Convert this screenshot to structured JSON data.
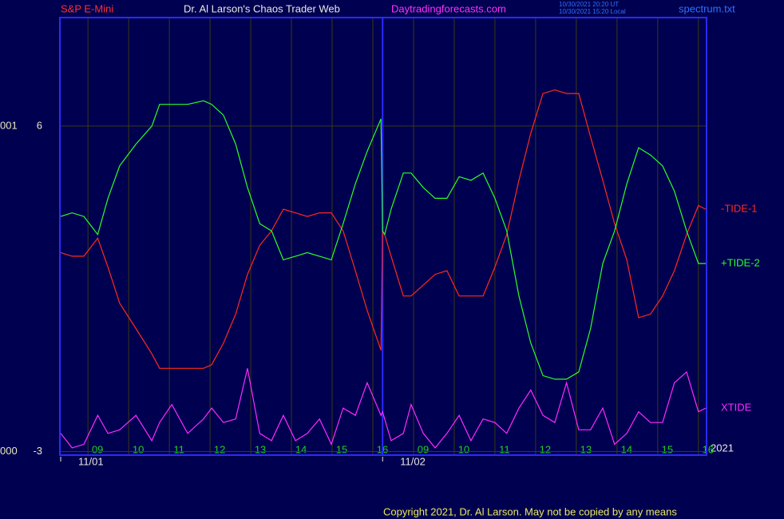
{
  "chart_data": {
    "type": "line",
    "header": {
      "instrument": "S&P E-Mini",
      "title": "Dr. Al Larson's Chaos Trader Web",
      "site": "Daytradingforecasts.com",
      "time_ut": "10/30/2021 20:20 UT",
      "time_local": "10/30/2021 15:20 Local",
      "file": "spectrum.txt"
    },
    "footer": "Copyright 2021, Dr. Al Larson. May not be copied by any means",
    "year_label": "2021",
    "xlim": [
      -0.69,
      15.2
    ],
    "ylim": [
      -3.1,
      9
    ],
    "yticks": [
      6,
      -3
    ],
    "left_labels": [
      "001",
      "000"
    ],
    "xticks": [
      {
        "value": 0,
        "label": "09"
      },
      {
        "value": 1,
        "label": "10"
      },
      {
        "value": 2,
        "label": "11"
      },
      {
        "value": 3,
        "label": "12"
      },
      {
        "value": 4,
        "label": "13"
      },
      {
        "value": 5,
        "label": "14"
      },
      {
        "value": 6,
        "label": "15"
      },
      {
        "value": 7,
        "label": "16"
      },
      {
        "value": 8,
        "label": "09"
      },
      {
        "value": 9,
        "label": "10"
      },
      {
        "value": 10,
        "label": "11"
      },
      {
        "value": 11,
        "label": "12"
      },
      {
        "value": 12,
        "label": "13"
      },
      {
        "value": 13,
        "label": "14"
      },
      {
        "value": 14,
        "label": "15"
      },
      {
        "value": 15,
        "label": "16"
      }
    ],
    "date_ticks": [
      {
        "value": -0.67,
        "label": "11/01"
      },
      {
        "value": 7.24,
        "label": "11/02"
      }
    ],
    "grid": true,
    "x": [
      -0.67,
      -0.39,
      -0.1,
      0.24,
      0.49,
      0.78,
      1.18,
      1.57,
      1.76,
      2.06,
      2.45,
      2.84,
      3.04,
      3.33,
      3.63,
      3.92,
      4.22,
      4.51,
      4.8,
      5.1,
      5.39,
      5.69,
      5.98,
      6.27,
      6.57,
      6.86,
      7.2,
      7.24,
      7.29,
      7.45,
      7.75,
      7.94,
      8.24,
      8.53,
      8.82,
      9.12,
      9.41,
      9.71,
      10.0,
      10.29,
      10.59,
      10.88,
      11.18,
      11.47,
      11.76,
      12.06,
      12.35,
      12.65,
      12.94,
      13.24,
      13.53,
      13.82,
      14.12,
      14.41,
      14.71,
      15.0,
      15.18
    ],
    "series": [
      {
        "name": "-TIDE-1",
        "color": "#ff2a1a",
        "values": [
          2.5,
          2.4,
          2.4,
          2.9,
          2.1,
          1.1,
          0.4,
          -0.3,
          -0.7,
          -0.7,
          -0.7,
          -0.7,
          -0.6,
          0.0,
          0.8,
          1.9,
          2.7,
          3.1,
          3.7,
          3.6,
          3.5,
          3.6,
          3.6,
          3.1,
          2.0,
          0.9,
          -0.2,
          3.1,
          3.0,
          2.4,
          1.3,
          1.3,
          1.6,
          1.9,
          2.0,
          1.3,
          1.3,
          1.3,
          2.1,
          3.0,
          4.5,
          5.8,
          6.9,
          7.0,
          6.9,
          6.9,
          5.7,
          4.5,
          3.3,
          2.3,
          0.7,
          0.8,
          1.3,
          2.0,
          3.0,
          3.8,
          3.7
        ]
      },
      {
        "name": "+TIDE-2",
        "color": "#2aff2a",
        "values": [
          3.5,
          3.6,
          3.5,
          3.0,
          4.0,
          4.9,
          5.5,
          6.0,
          6.6,
          6.6,
          6.6,
          6.7,
          6.6,
          6.3,
          5.5,
          4.3,
          3.3,
          3.1,
          2.3,
          2.4,
          2.5,
          2.4,
          2.3,
          3.3,
          4.4,
          5.3,
          6.2,
          3.1,
          3.0,
          3.7,
          4.7,
          4.7,
          4.3,
          4.0,
          4.0,
          4.6,
          4.5,
          4.7,
          4.0,
          3.1,
          1.3,
          0.0,
          -0.9,
          -1.0,
          -1.0,
          -0.8,
          0.4,
          2.2,
          3.1,
          4.4,
          5.4,
          5.2,
          4.9,
          4.2,
          3.1,
          2.2,
          2.2
        ]
      },
      {
        "name": "XTIDE",
        "color": "#ff2aff",
        "values": [
          -2.5,
          -2.9,
          -2.8,
          -2.0,
          -2.5,
          -2.4,
          -2.0,
          -2.7,
          -2.2,
          -1.7,
          -2.5,
          -2.1,
          -1.8,
          -2.2,
          -2.1,
          -0.7,
          -2.5,
          -2.7,
          -2.0,
          -2.7,
          -2.5,
          -2.1,
          -2.8,
          -1.8,
          -2.0,
          -1.1,
          -2.0,
          -1.9,
          -2.1,
          -2.7,
          -2.5,
          -1.7,
          -2.5,
          -2.9,
          -2.5,
          -2.0,
          -2.7,
          -2.1,
          -2.2,
          -2.5,
          -1.8,
          -1.3,
          -2.0,
          -2.2,
          -1.1,
          -2.4,
          -2.4,
          -1.8,
          -2.8,
          -2.5,
          -1.9,
          -2.2,
          -2.2,
          -1.1,
          -0.8,
          -1.9,
          -1.8
        ]
      }
    ]
  }
}
